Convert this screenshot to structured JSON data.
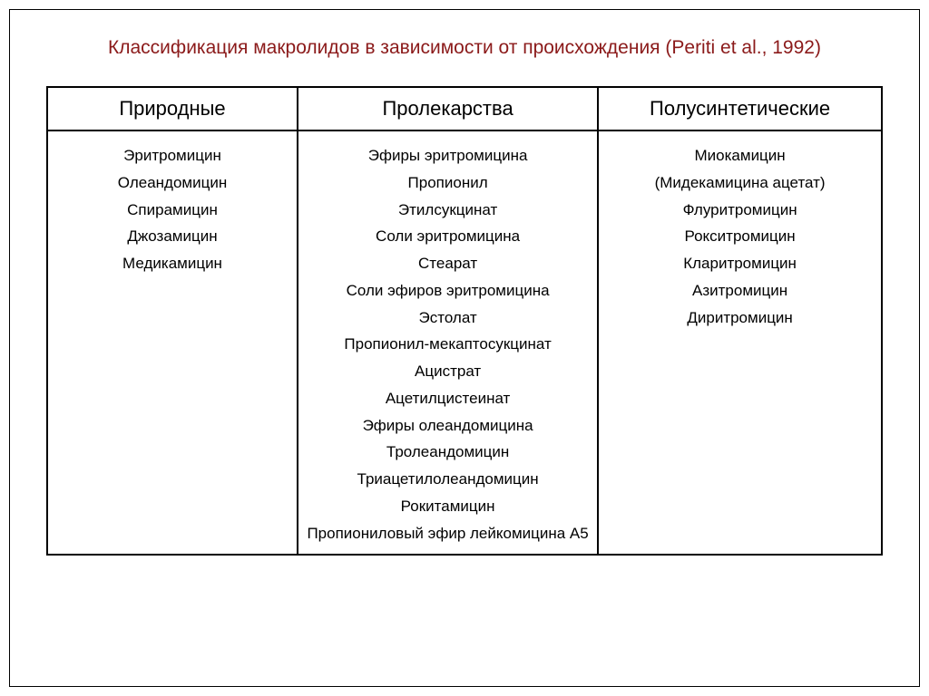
{
  "title": "Классификация макролидов в зависимости от происхождения (Periti et al., 1992)",
  "columns": [
    "Природные",
    "Пролекарства",
    "Полусинтетические"
  ],
  "cells": {
    "col0": [
      "Эритромицин",
      "Олеандомицин",
      "Спирамицин",
      "Джозамицин",
      "Медикамицин"
    ],
    "col1": [
      "Эфиры эритромицина",
      "Пропионил",
      "Этилсукцинат",
      "Соли эритромицина",
      "Стеарат",
      "Соли эфиров эритромицина",
      "Эстолат",
      "Пропионил-мекаптосукцинат",
      "Ацистрат",
      "Ацетилцистеинат",
      "Эфиры олеандомицина",
      "Тролеандомицин",
      "Триацетилолеандомицин",
      "Рокитамицин",
      "Пропиониловый эфир лейкомицина А5"
    ],
    "col2": [
      "Миокамицин",
      "(Мидекамицина ацетат)",
      "Флуритромицин",
      "Рокситромицин",
      "Кларитромицин",
      "Азитромицин",
      "Диритромицин"
    ]
  },
  "colors": {
    "title": "#8b1a1a",
    "border": "#000000",
    "background": "#ffffff",
    "text": "#000000"
  },
  "typography": {
    "title_fontsize": 21,
    "header_fontsize": 22,
    "cell_fontsize": 17,
    "font_family": "Arial"
  },
  "layout": {
    "col_widths_pct": [
      30,
      36,
      34
    ]
  }
}
